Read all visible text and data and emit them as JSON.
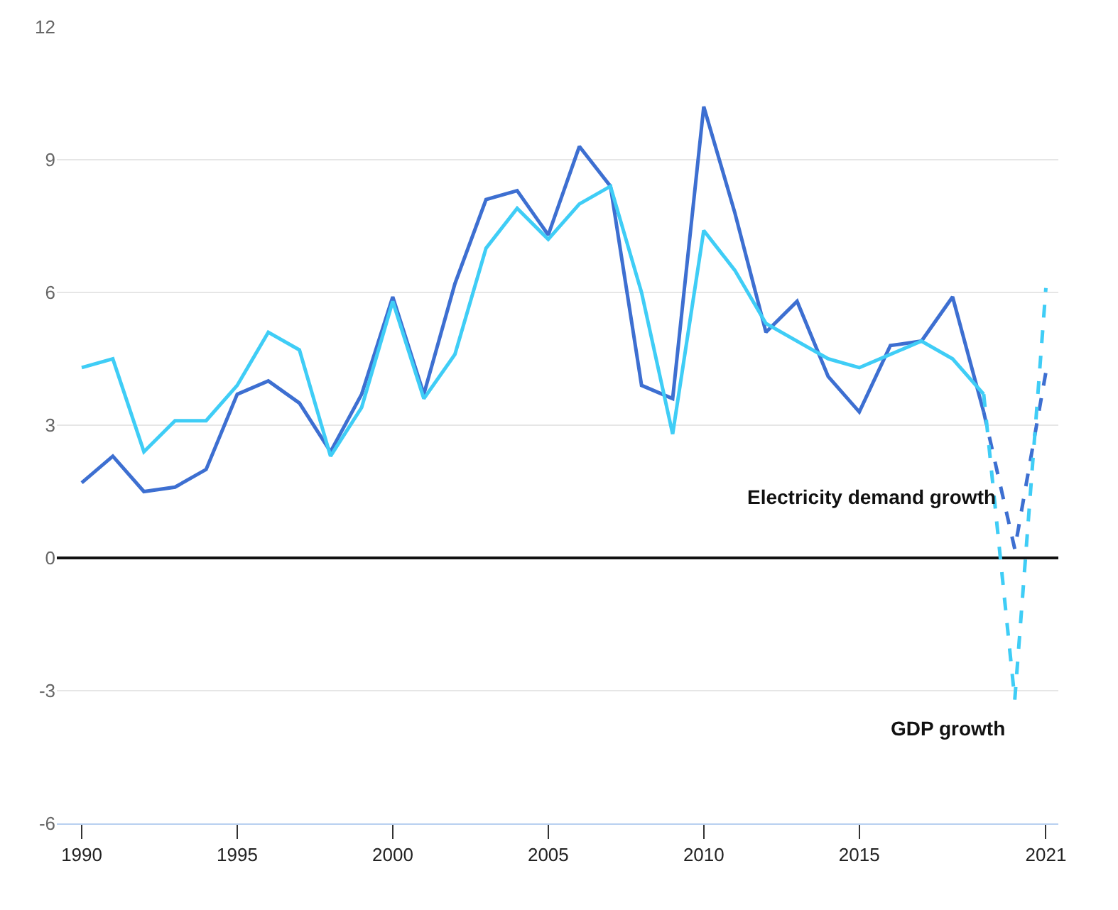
{
  "chart_data": {
    "type": "line",
    "x": [
      1990,
      1991,
      1992,
      1993,
      1994,
      1995,
      1996,
      1997,
      1998,
      1999,
      2000,
      2001,
      2002,
      2003,
      2004,
      2005,
      2006,
      2007,
      2008,
      2009,
      2010,
      2011,
      2012,
      2013,
      2014,
      2015,
      2016,
      2017,
      2018,
      2019,
      2020,
      2021
    ],
    "series": [
      {
        "color": "#3d6fd1",
        "line_style": "solid",
        "values": [
          1.7,
          2.3,
          1.5,
          1.6,
          2.0,
          3.7,
          4.0,
          3.5,
          2.4,
          3.7,
          5.9,
          3.7,
          6.2,
          8.1,
          8.3,
          7.3,
          9.3,
          8.4,
          3.9,
          3.6,
          10.2,
          7.8,
          5.1,
          5.8,
          4.1,
          3.3,
          4.8,
          4.9,
          5.9,
          3.3,
          null,
          null
        ]
      },
      {
        "color": "#3fcdf6",
        "line_style": "solid",
        "values": [
          4.3,
          4.5,
          2.4,
          3.1,
          3.1,
          3.9,
          5.1,
          4.7,
          2.3,
          3.4,
          5.8,
          3.6,
          4.6,
          7.0,
          7.9,
          7.2,
          8.0,
          8.4,
          6.0,
          2.8,
          7.4,
          6.5,
          5.3,
          4.9,
          4.5,
          4.3,
          4.6,
          4.9,
          4.5,
          3.7,
          null,
          null
        ]
      },
      {
        "name": "Electricity demand growth",
        "color": "#3d6fd1",
        "line_style": "dashed",
        "values": [
          null,
          null,
          null,
          null,
          null,
          null,
          null,
          null,
          null,
          null,
          null,
          null,
          null,
          null,
          null,
          null,
          null,
          null,
          null,
          null,
          null,
          null,
          null,
          null,
          null,
          null,
          null,
          null,
          null,
          3.3,
          0.2,
          4.2
        ]
      },
      {
        "name": "GDP growth",
        "color": "#3fcdf6",
        "line_style": "dashed",
        "values": [
          null,
          null,
          null,
          null,
          null,
          null,
          null,
          null,
          null,
          null,
          null,
          null,
          null,
          null,
          null,
          null,
          null,
          null,
          null,
          null,
          null,
          null,
          null,
          null,
          null,
          null,
          null,
          null,
          null,
          3.7,
          -3.2,
          6.1
        ]
      }
    ],
    "xlim": [
      1989.2,
      2021.4
    ],
    "xticks": [
      1990,
      1995,
      2000,
      2005,
      2010,
      2015,
      2021
    ],
    "ylim": [
      -6,
      12
    ],
    "yticks": [
      -6,
      -3,
      0,
      3,
      6,
      9,
      12
    ],
    "grid": "y",
    "legend": false,
    "marker": "none"
  }
}
